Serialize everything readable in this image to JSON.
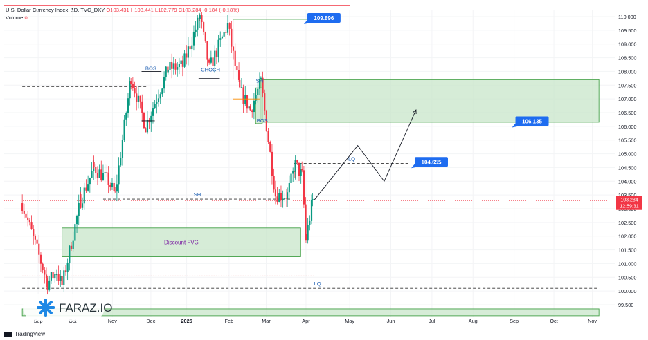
{
  "legend": {
    "title": "U.S. Dollar Currency Index, 1D, TVC_DXY",
    "o": "O103.431",
    "h": "H103.441",
    "l": "L102.779",
    "c": "C103.284",
    "chg": "-0.184 (-0.18%)",
    "volume_label": "Volume",
    "volume_value": "0"
  },
  "footer": {
    "brand": "TradingView"
  },
  "watermark": {
    "text": "FARAZ.IO",
    "logo_icon": "faraz-star-logo-icon",
    "color": "#1e88e5"
  },
  "colors": {
    "up": "#089981",
    "down": "#f23645",
    "zone": "#c8e6c9",
    "zone_border": "#43a047",
    "callout": "#1e6cf0",
    "annot": "#1e5fb3",
    "fvg_text": "#7b1fa2"
  },
  "chart_data": {
    "type": "candlestick",
    "symbol": "TVC:DXY",
    "interval": "1D",
    "y_axis": {
      "min": 99.5,
      "max": 110.0,
      "step": 0.5,
      "ticks": [
        "110.000",
        "109.500",
        "109.000",
        "108.500",
        "108.000",
        "107.500",
        "107.000",
        "106.500",
        "106.000",
        "105.500",
        "105.000",
        "104.500",
        "104.000",
        "103.500",
        "103.000",
        "102.500",
        "102.000",
        "101.500",
        "101.000",
        "100.500",
        "100.000",
        "99.500"
      ],
      "current_price": "103.284",
      "countdown": "12:59:31"
    },
    "x_axis": {
      "ticks": [
        "Sep",
        "Oct",
        "Nov",
        "Dec",
        "2025",
        "Feb",
        "Mar",
        "Apr",
        "May",
        "Jun",
        "Jul",
        "Aug",
        "Sep",
        "Oct",
        "Nov"
      ],
      "bold_ticks": [
        "2025"
      ]
    },
    "ohlc_path": [
      [
        "2024-09-01",
        103.2
      ],
      [
        "2024-09-20",
        100.3
      ],
      [
        "2024-09-27",
        100.7
      ],
      [
        "2024-10-01",
        100.2
      ],
      [
        "2024-10-15",
        103.3
      ],
      [
        "2024-10-25",
        104.5
      ],
      [
        "2024-11-05",
        104.0
      ],
      [
        "2024-11-10",
        103.5
      ],
      [
        "2024-11-22",
        107.8
      ],
      [
        "2024-12-03",
        106.0
      ],
      [
        "2024-12-20",
        108.1
      ],
      [
        "2024-12-31",
        108.2
      ],
      [
        "2025-01-13",
        110.0
      ],
      [
        "2025-01-20",
        108.1
      ],
      [
        "2025-02-03",
        109.7
      ],
      [
        "2025-02-12",
        107.3
      ],
      [
        "2025-02-20",
        106.6
      ],
      [
        "2025-02-28",
        107.6
      ],
      [
        "2025-03-11",
        103.5
      ],
      [
        "2025-03-20",
        103.5
      ],
      [
        "2025-03-26",
        104.6
      ],
      [
        "2025-03-31",
        104.2
      ],
      [
        "2025-04-03",
        101.9
      ],
      [
        "2025-04-08",
        103.3
      ]
    ],
    "projection": [
      [
        "2025-04-09",
        103.3
      ],
      [
        "2025-05-12",
        105.3
      ],
      [
        "2025-06-01",
        104.0
      ],
      [
        "2025-06-25",
        106.6
      ]
    ],
    "levels": [
      {
        "label": "",
        "value": 107.45,
        "from": "2024-09-01",
        "to": "2024-12-05",
        "style": "dashed"
      },
      {
        "label": "SH",
        "value": 103.35,
        "from": "2024-11-01",
        "to": "2025-03-23",
        "style": "dashed"
      },
      {
        "label": "LQ",
        "value": 104.65,
        "from": "2025-03-25",
        "to": "2025-06-20",
        "style": "dashed"
      },
      {
        "label": "LQ",
        "value": 100.1,
        "from": "2024-09-01",
        "to": "2025-11-10",
        "style": "dashed"
      },
      {
        "label": "",
        "value": 100.55,
        "from": "2024-09-01",
        "to": "2025-04-10",
        "style": "dotted"
      }
    ],
    "zones": [
      {
        "label": "",
        "from": "2025-02-28",
        "to": "2025-11-10",
        "top": 107.7,
        "bottom": 106.15
      },
      {
        "label": "Discount FVG",
        "from": "2024-10-01",
        "to": "2025-03-30",
        "top": 102.3,
        "bottom": 101.25
      },
      {
        "label": "",
        "from": "2024-09-01",
        "to": "2025-11-10",
        "top": 99.35,
        "bottom": 99.1
      },
      {
        "label": "",
        "from": "2025-02-24",
        "to": "2025-03-01",
        "top": 107.4,
        "bottom": 106.1
      }
    ],
    "annotations": [
      {
        "label": "BOS",
        "date": "2024-12-07",
        "value": 108.0
      },
      {
        "label": "CHOCH",
        "date": "2025-01-21",
        "value": 107.95
      },
      {
        "label": "SH",
        "date": "2025-02-27",
        "value": 107.55
      },
      {
        "label": "BOS",
        "date": "2025-03-01",
        "value": 106.1
      }
    ],
    "callouts": [
      {
        "label": "109.896",
        "value": 109.9
      },
      {
        "label": "106.135",
        "value": 106.135
      },
      {
        "label": "104.655",
        "value": 104.655
      }
    ]
  }
}
